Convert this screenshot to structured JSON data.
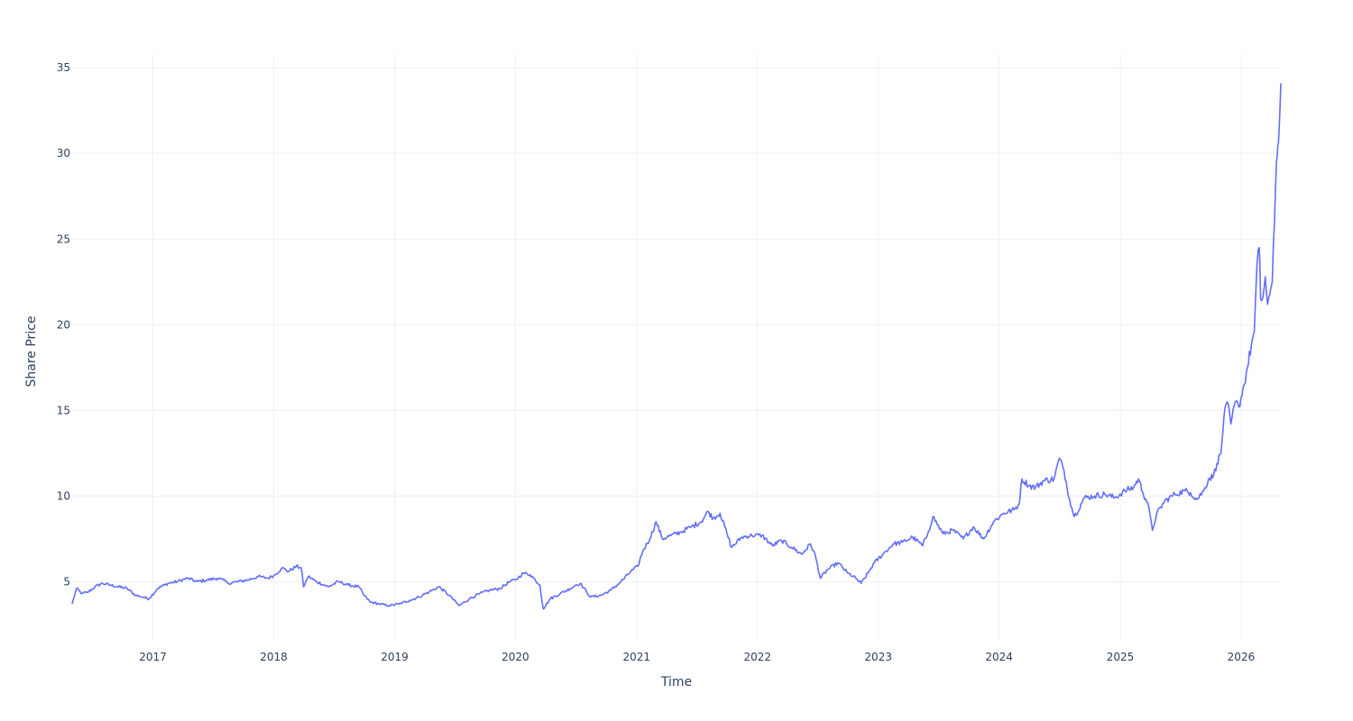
{
  "chart_data": {
    "type": "line",
    "title": "",
    "xlabel": "Time",
    "ylabel": "Share Price",
    "xlim": [
      "2016-05-02",
      "2026-05-01"
    ],
    "ylim": [
      1.6,
      35.8
    ],
    "x_ticks": [
      "2017",
      "2018",
      "2019",
      "2020",
      "2021",
      "2022",
      "2023",
      "2024",
      "2025",
      "2026"
    ],
    "y_ticks": [
      5,
      10,
      15,
      20,
      25,
      30,
      35
    ],
    "grid": true,
    "legend": "none",
    "colors": {
      "line": "#636efa",
      "grid": "#ebf0f8",
      "text": "#2a3f5f"
    },
    "series": [
      {
        "x": [
          "2016-05-02",
          "2016-05-15",
          "2016-06-01",
          "2016-06-20",
          "2016-07-10",
          "2016-08-01",
          "2016-08-25",
          "2016-09-20",
          "2016-10-15",
          "2016-11-10",
          "2016-12-01",
          "2016-12-20",
          "2017-01-15",
          "2017-02-15",
          "2017-03-15",
          "2017-04-15",
          "2017-05-15",
          "2017-06-15",
          "2017-07-15",
          "2017-08-01",
          "2017-08-15",
          "2017-09-15",
          "2017-10-15",
          "2017-11-15",
          "2017-12-15",
          "2018-01-05",
          "2018-01-25",
          "2018-02-15",
          "2018-03-10",
          "2018-03-25",
          "2018-04-01",
          "2018-04-15",
          "2018-05-10",
          "2018-06-15",
          "2018-07-15",
          "2018-08-15",
          "2018-09-15",
          "2018-10-01",
          "2018-10-20",
          "2018-11-15",
          "2018-12-15",
          "2019-01-15",
          "2019-02-15",
          "2019-03-15",
          "2019-04-15",
          "2019-05-15",
          "2019-06-15",
          "2019-07-15",
          "2019-08-15",
          "2019-09-15",
          "2019-10-15",
          "2019-11-15",
          "2019-12-15",
          "2020-01-01",
          "2020-01-25",
          "2020-02-15",
          "2020-03-01",
          "2020-03-15",
          "2020-03-25",
          "2020-04-15",
          "2020-05-15",
          "2020-06-15",
          "2020-07-01",
          "2020-07-15",
          "2020-08-15",
          "2020-09-15",
          "2020-10-15",
          "2020-11-15",
          "2020-12-15",
          "2021-01-05",
          "2021-01-20",
          "2021-02-10",
          "2021-03-01",
          "2021-03-20",
          "2021-04-15",
          "2021-05-15",
          "2021-06-15",
          "2021-07-15",
          "2021-08-05",
          "2021-08-20",
          "2021-09-10",
          "2021-10-01",
          "2021-10-15",
          "2021-11-15",
          "2021-12-15",
          "2022-01-15",
          "2022-02-15",
          "2022-03-15",
          "2022-04-15",
          "2022-05-15",
          "2022-06-10",
          "2022-06-25",
          "2022-07-10",
          "2022-08-01",
          "2022-09-01",
          "2022-10-01",
          "2022-10-25",
          "2022-11-10",
          "2022-12-01",
          "2022-12-20",
          "2023-01-15",
          "2023-02-15",
          "2023-03-15",
          "2023-04-15",
          "2023-05-15",
          "2023-06-01",
          "2023-06-15",
          "2023-07-15",
          "2023-08-15",
          "2023-09-15",
          "2023-10-15",
          "2023-11-15",
          "2023-12-15",
          "2024-01-15",
          "2024-02-15",
          "2024-03-01",
          "2024-03-10",
          "2024-04-01",
          "2024-04-20",
          "2024-05-15",
          "2024-06-15",
          "2024-07-01",
          "2024-07-15",
          "2024-08-01",
          "2024-08-15",
          "2024-09-15",
          "2024-10-15",
          "2024-11-15",
          "2024-12-15",
          "2025-01-15",
          "2025-02-10",
          "2025-02-25",
          "2025-03-10",
          "2025-03-25",
          "2025-04-08",
          "2025-04-20",
          "2025-05-15",
          "2025-06-15",
          "2025-07-15",
          "2025-08-01",
          "2025-08-20",
          "2025-09-10",
          "2025-09-25",
          "2025-10-10",
          "2025-10-20",
          "2025-11-01",
          "2025-11-10",
          "2025-11-20",
          "2025-12-01",
          "2025-12-15",
          "2025-12-25",
          "2026-01-10",
          "2026-01-20",
          "2026-02-01",
          "2026-02-10",
          "2026-02-18",
          "2026-02-25",
          "2026-03-01",
          "2026-03-08",
          "2026-03-15",
          "2026-03-22",
          "2026-03-29",
          "2026-04-05",
          "2026-04-12",
          "2026-04-18",
          "2026-04-22",
          "2026-04-26",
          "2026-05-01"
        ],
        "y": [
          3.7,
          4.6,
          4.3,
          4.4,
          4.7,
          4.9,
          4.8,
          4.7,
          4.6,
          4.2,
          4.1,
          4.0,
          4.6,
          4.9,
          5.0,
          5.2,
          5.0,
          5.1,
          5.2,
          5.1,
          4.9,
          5.0,
          5.1,
          5.3,
          5.2,
          5.4,
          5.8,
          5.6,
          5.9,
          5.8,
          4.7,
          5.3,
          5.0,
          4.7,
          5.0,
          4.8,
          4.7,
          4.2,
          3.8,
          3.7,
          3.6,
          3.7,
          3.9,
          4.1,
          4.4,
          4.7,
          4.2,
          3.6,
          4.0,
          4.3,
          4.5,
          4.6,
          5.0,
          5.1,
          5.5,
          5.4,
          5.1,
          4.8,
          3.4,
          4.0,
          4.3,
          4.6,
          4.8,
          4.9,
          4.1,
          4.2,
          4.5,
          5.0,
          5.6,
          5.9,
          6.8,
          7.5,
          8.5,
          7.5,
          7.7,
          7.9,
          8.2,
          8.5,
          9.1,
          8.7,
          9.0,
          7.8,
          7.0,
          7.6,
          7.7,
          7.7,
          7.1,
          7.4,
          7.0,
          6.6,
          7.2,
          6.5,
          5.2,
          5.7,
          6.1,
          5.5,
          5.2,
          4.9,
          5.5,
          6.1,
          6.6,
          7.2,
          7.3,
          7.6,
          7.1,
          7.9,
          8.8,
          7.8,
          8.0,
          7.5,
          8.2,
          7.5,
          8.5,
          9.0,
          9.2,
          9.5,
          11.0,
          10.6,
          10.5,
          10.9,
          11.0,
          12.2,
          11.5,
          9.8,
          8.8,
          9.9,
          10.0,
          10.1,
          9.9,
          10.3,
          10.5,
          11.0,
          10.2,
          9.6,
          8.0,
          8.9,
          9.7,
          10.1,
          10.3,
          10.2,
          9.8,
          10.3,
          11.0,
          11.2,
          11.9,
          12.5,
          14.6,
          15.5,
          14.2,
          15.5,
          15.2,
          16.5,
          17.5,
          18.8,
          19.6,
          23.5,
          24.5,
          21.5,
          21.6,
          22.8,
          21.2,
          21.8,
          22.5,
          26.0,
          29.5,
          30.5,
          31.5,
          34.1
        ]
      }
    ]
  }
}
